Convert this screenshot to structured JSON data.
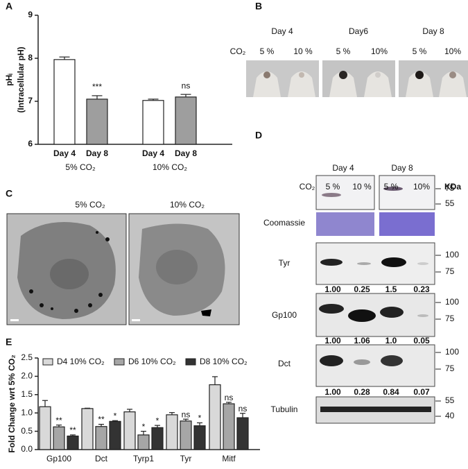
{
  "panel_letters": [
    "A",
    "B",
    "C",
    "D",
    "E"
  ],
  "chart_data": [
    {
      "type": "bar",
      "ylabel_main": "pHᵢ",
      "ylabel_sub": "(Intracellular pH)",
      "categories": [
        "Day 4",
        "Day 8",
        "Day 4",
        "Day 8"
      ],
      "groups": [
        "5% CO₂",
        "10% CO₂"
      ],
      "values": [
        7.97,
        7.05,
        7.02,
        7.1
      ],
      "errors": [
        0.06,
        0.08,
        0.03,
        0.06
      ],
      "colors": [
        "#ffffff",
        "#9e9e9e",
        "#ffffff",
        "#9e9e9e"
      ],
      "bar_labels": [
        null,
        "***",
        null,
        "ns"
      ],
      "ylim": [
        6,
        9
      ],
      "yticks": [
        6,
        7,
        8,
        9
      ]
    },
    {
      "type": "bar",
      "ylabel": "Fold Change wrt 5% CO₂",
      "categories": [
        "Gp100",
        "Dct",
        "Tyrp1",
        "Tyr",
        "Mitf"
      ],
      "series": [
        {
          "name": "D4 10% CO₂",
          "color": "#d9d9d9",
          "values": [
            1.17,
            1.12,
            1.03,
            0.95,
            1.77
          ],
          "errors": [
            0.17,
            0.01,
            0.07,
            0.06,
            0.22
          ],
          "bar_labels": [
            null,
            null,
            null,
            null,
            null
          ]
        },
        {
          "name": "D6 10% CO₂",
          "color": "#a6a6a6",
          "values": [
            0.62,
            0.63,
            0.4,
            0.78,
            1.25
          ],
          "errors": [
            0.05,
            0.06,
            0.1,
            0.05,
            0.04
          ],
          "bar_labels": [
            "**",
            "**",
            "*",
            "ns",
            "ns"
          ]
        },
        {
          "name": "D8 10% CO₂",
          "color": "#333333",
          "values": [
            0.37,
            0.77,
            0.6,
            0.65,
            0.87
          ],
          "errors": [
            0.03,
            0.02,
            0.06,
            0.08,
            0.12
          ],
          "bar_labels": [
            "**",
            "*",
            "*",
            "*",
            "ns"
          ]
        }
      ],
      "ylim": [
        0,
        2.5
      ],
      "yticks": [
        {
          "value": 0,
          "label": "0.0"
        },
        0.5,
        {
          "value": 1,
          "label": "1.0"
        },
        1.5,
        {
          "value": 2,
          "label": "2.0"
        },
        2.5
      ]
    }
  ],
  "panel_b": {
    "days": [
      "Day 4",
      "Day6",
      "Day 8"
    ],
    "co2_label": "CO₂",
    "conditions": [
      "5 %",
      "10 %",
      "5 %",
      "10%",
      "5 %",
      "10%"
    ]
  },
  "panel_c": {
    "labels": [
      "5% CO₂",
      "10% CO₂"
    ]
  },
  "panel_d": {
    "days": [
      "Day 4",
      "Day 8"
    ],
    "co2_label": "CO₂",
    "conditions": [
      "5 %",
      "10 %",
      "5 %",
      "10%"
    ],
    "unit": "KDa",
    "blots": [
      {
        "label": null,
        "markers": [
          "75",
          "55"
        ],
        "quant": null
      },
      {
        "label": "Coomassie",
        "markers": null,
        "quant": null
      },
      {
        "label": "Tyr",
        "markers": [
          "100",
          "75"
        ],
        "quant": [
          "1.00",
          "0.25",
          "1.5",
          "0.23"
        ]
      },
      {
        "label": "Gp100",
        "markers": [
          "100",
          "75"
        ],
        "quant": [
          "1.00",
          "1.06",
          "1.0",
          "0.05"
        ]
      },
      {
        "label": "Dct",
        "markers": [
          "100",
          "75"
        ],
        "quant": [
          "1.00",
          "0.28",
          "0.84",
          "0.07"
        ]
      },
      {
        "label": "Tubulin",
        "markers": [
          "55",
          "40"
        ],
        "quant": null
      }
    ]
  }
}
